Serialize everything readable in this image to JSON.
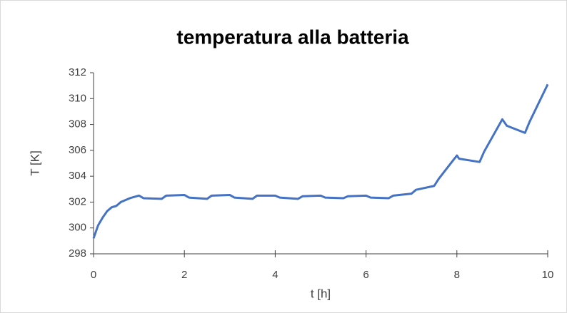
{
  "chart_data": {
    "type": "line",
    "title": "temperatura alla batteria",
    "x_label": "t [h]",
    "y_label": "T [K]",
    "xlim": [
      0,
      10
    ],
    "xticks": [
      0,
      2,
      4,
      6,
      8,
      10
    ],
    "ylim": [
      298,
      312
    ],
    "yticks": [
      298,
      300,
      302,
      304,
      306,
      308,
      310,
      312
    ],
    "grid": false,
    "series": [
      {
        "name": "T",
        "color": "#4472c4",
        "x": [
          0,
          0.1,
          0.2,
          0.3,
          0.4,
          0.5,
          0.6,
          0.8,
          1.0,
          1.1,
          1.5,
          1.6,
          2.0,
          2.1,
          2.5,
          2.6,
          3.0,
          3.1,
          3.5,
          3.6,
          4.0,
          4.1,
          4.5,
          4.6,
          5.0,
          5.1,
          5.5,
          5.6,
          6.0,
          6.1,
          6.5,
          6.6,
          7.0,
          7.1,
          7.5,
          7.6,
          8.0,
          8.05,
          8.5,
          8.6,
          9.0,
          9.1,
          9.5,
          9.6,
          10.0
        ],
        "values": [
          299.2,
          300.2,
          300.8,
          301.3,
          301.6,
          301.7,
          302.0,
          302.3,
          302.5,
          302.3,
          302.25,
          302.5,
          302.55,
          302.35,
          302.25,
          302.5,
          302.55,
          302.35,
          302.25,
          302.5,
          302.5,
          302.35,
          302.25,
          302.45,
          302.5,
          302.35,
          302.3,
          302.45,
          302.5,
          302.35,
          302.3,
          302.5,
          302.65,
          302.95,
          303.25,
          303.8,
          305.6,
          305.35,
          305.1,
          305.9,
          308.4,
          307.9,
          307.35,
          308.2,
          311.1
        ]
      }
    ]
  }
}
